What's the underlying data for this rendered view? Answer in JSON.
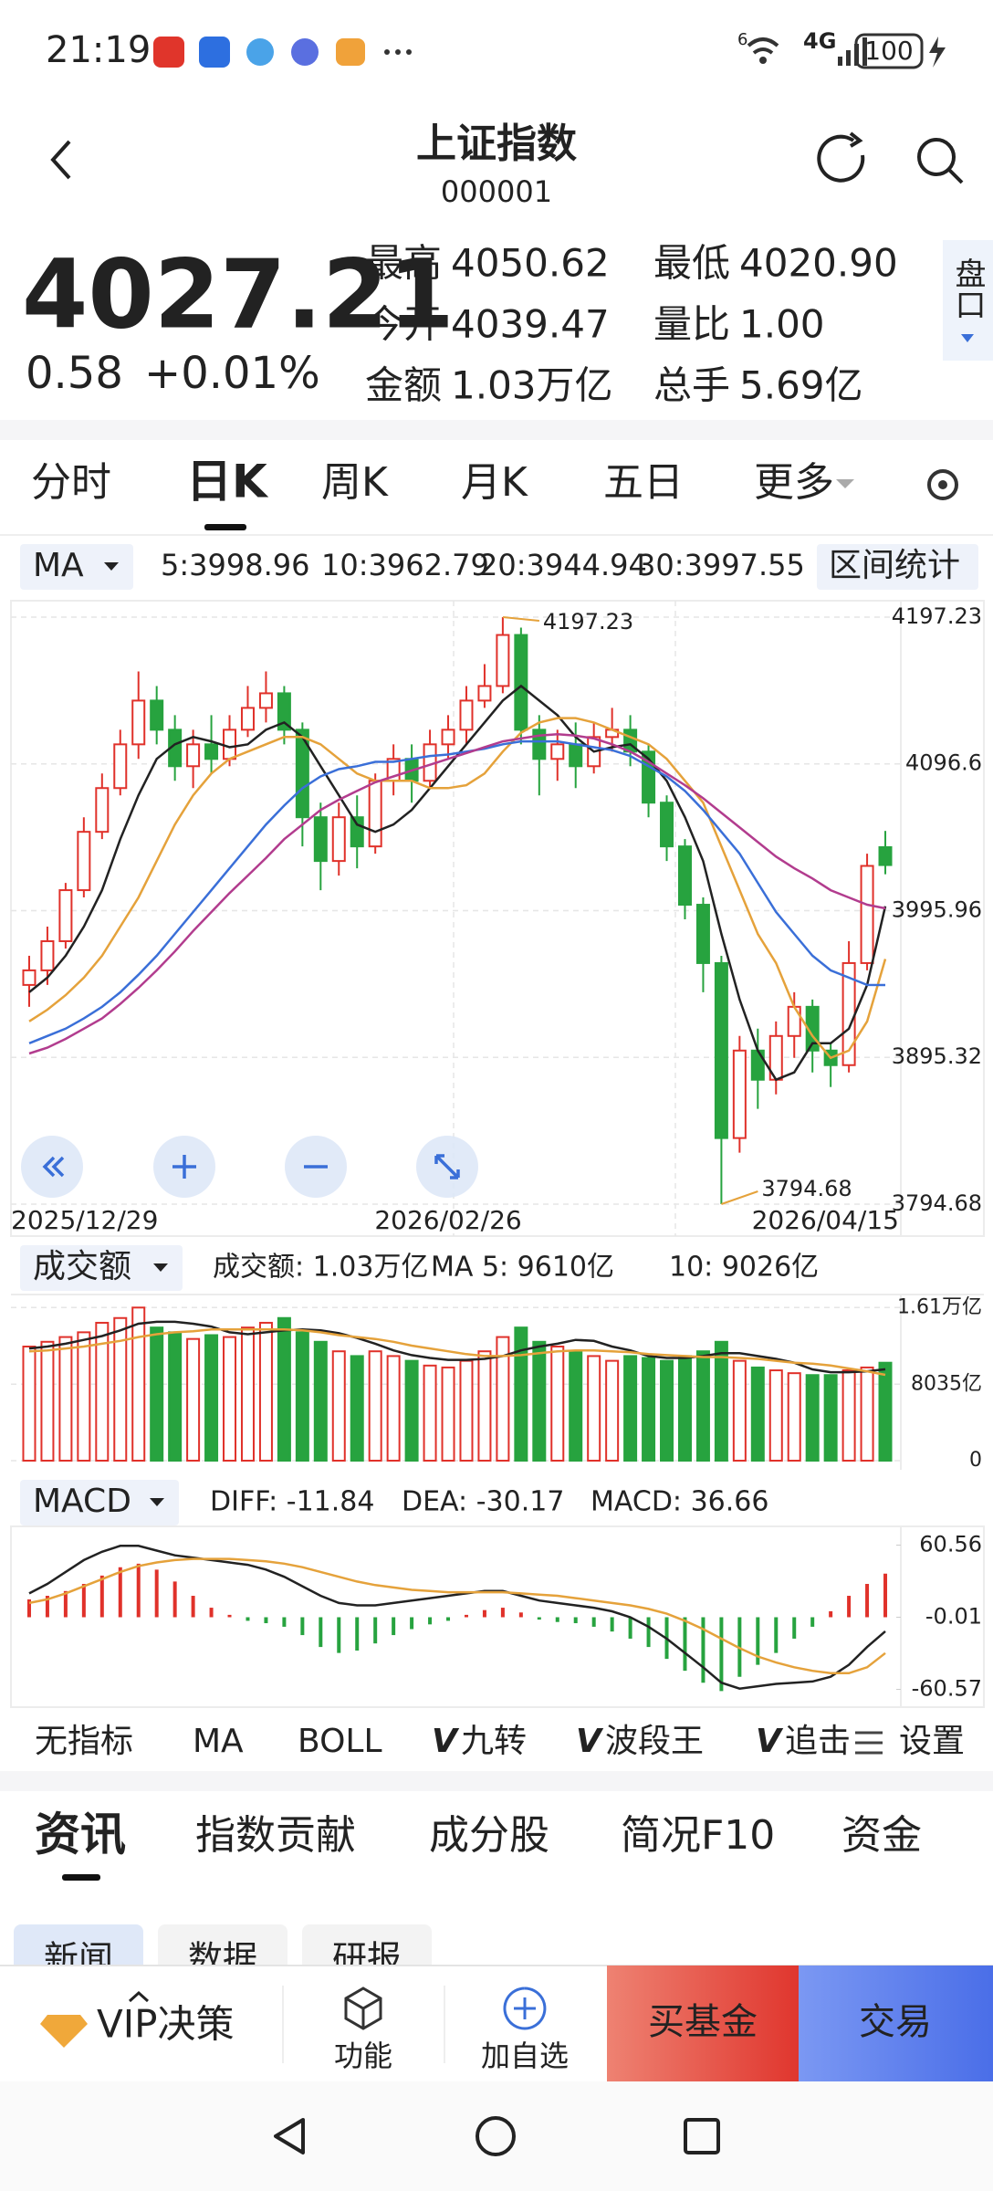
{
  "status_bar": {
    "time": "21:19",
    "wifi": "6",
    "network": "4G",
    "battery": "100"
  },
  "header": {
    "title": "上证指数",
    "code": "000001"
  },
  "quote": {
    "price": "4027.21",
    "change": "0.58",
    "change_pct": "+0.01%",
    "stats": [
      {
        "label": "最高",
        "value": "4050.62"
      },
      {
        "label": "最低",
        "value": "4020.90"
      },
      {
        "label": "今开",
        "value": "4039.47"
      },
      {
        "label": "量比",
        "value": "1.00"
      },
      {
        "label": "金额",
        "value": "1.03万亿"
      },
      {
        "label": "总手",
        "value": "5.69亿"
      }
    ],
    "panel_button": "盘口"
  },
  "period_tabs": {
    "items": [
      "分时",
      "日K",
      "周K",
      "月K",
      "五日",
      "更多"
    ],
    "selected": 1
  },
  "chart_data": [
    {
      "type": "candlestick",
      "selector": "MA",
      "button": "区间统计",
      "up_color": "#e0312a",
      "down_color": "#27a33f",
      "grid": true,
      "categories": [
        "2025/12/29",
        null,
        null,
        null,
        null,
        null,
        null,
        null,
        null,
        null,
        null,
        null,
        null,
        null,
        null,
        null,
        null,
        null,
        null,
        null,
        null,
        null,
        null,
        "2026/02/26",
        null,
        null,
        null,
        null,
        null,
        null,
        null,
        null,
        null,
        null,
        null,
        null,
        null,
        null,
        null,
        null,
        null,
        null,
        null,
        null,
        null,
        null,
        null,
        "2026/04/15"
      ],
      "open": [
        3945,
        3955,
        3975,
        4010,
        4050,
        4080,
        4110,
        4140,
        4120,
        4095,
        4110,
        4100,
        4120,
        4135,
        4145,
        4120,
        4060,
        4030,
        4060,
        4040,
        4085,
        4100,
        4085,
        4110,
        4120,
        4140,
        4150,
        4185,
        4120,
        4100,
        4110,
        4095,
        4115,
        4120,
        4105,
        4070,
        4040,
        4000,
        3960,
        3840,
        3900,
        3880,
        3910,
        3930,
        3900,
        3890,
        3960,
        4039.47
      ],
      "close": [
        3955,
        3975,
        4010,
        4050,
        4080,
        4110,
        4140,
        4120,
        4095,
        4110,
        4100,
        4120,
        4135,
        4145,
        4120,
        4060,
        4030,
        4060,
        4040,
        4085,
        4100,
        4085,
        4110,
        4120,
        4140,
        4150,
        4185,
        4120,
        4100,
        4110,
        4095,
        4115,
        4120,
        4105,
        4070,
        4040,
        4000,
        3960,
        3840,
        3900,
        3880,
        3910,
        3930,
        3900,
        3890,
        3960,
        4026.63,
        4027.21
      ],
      "high": [
        3965,
        3985,
        4015,
        4060,
        4090,
        4120,
        4160,
        4150,
        4130,
        4120,
        4130,
        4130,
        4150,
        4160,
        4150,
        4125,
        4070,
        4070,
        4075,
        4090,
        4110,
        4110,
        4120,
        4130,
        4150,
        4165,
        4197.23,
        4190,
        4130,
        4120,
        4125,
        4125,
        4135,
        4130,
        4110,
        4075,
        4045,
        4005,
        3965,
        3910,
        3915,
        3920,
        3940,
        3935,
        3905,
        3975,
        4035,
        4050.62
      ],
      "low": [
        3930,
        3945,
        3970,
        4005,
        4045,
        4075,
        4100,
        4110,
        4085,
        4080,
        4090,
        4095,
        4115,
        4125,
        4110,
        4040,
        4010,
        4020,
        4025,
        4035,
        4075,
        4070,
        4080,
        4100,
        4110,
        4135,
        4145,
        4110,
        4075,
        4085,
        4080,
        4090,
        4105,
        4095,
        4060,
        4030,
        3990,
        3940,
        3794.68,
        3830,
        3860,
        3870,
        3895,
        3885,
        3875,
        3885,
        3955,
        4020.9
      ],
      "series": [
        {
          "name": "5:3998.96",
          "color": "#222222",
          "values": [
            3940,
            3950,
            3965,
            3985,
            4010,
            4045,
            4075,
            4100,
            4110,
            4115,
            4112,
            4108,
            4110,
            4120,
            4125,
            4115,
            4095,
            4075,
            4055,
            4050,
            4055,
            4065,
            4080,
            4095,
            4110,
            4125,
            4140,
            4150,
            4140,
            4130,
            4115,
            4105,
            4108,
            4110,
            4100,
            4085,
            4060,
            4030,
            3980,
            3935,
            3900,
            3880,
            3885,
            3905,
            3905,
            3915,
            3945,
            3998.96
          ]
        },
        {
          "name": "10:3962.79",
          "color": "#e5a23b",
          "values": [
            3920,
            3928,
            3938,
            3950,
            3965,
            3985,
            4005,
            4030,
            4055,
            4075,
            4090,
            4100,
            4105,
            4110,
            4115,
            4115,
            4110,
            4100,
            4090,
            4085,
            4085,
            4085,
            4080,
            4080,
            4082,
            4090,
            4105,
            4118,
            4125,
            4128,
            4128,
            4125,
            4120,
            4115,
            4110,
            4100,
            4085,
            4070,
            4040,
            4010,
            3980,
            3960,
            3930,
            3910,
            3895,
            3900,
            3920,
            3962.79
          ]
        },
        {
          "name": "20:3944.94",
          "color": "#3a6fd8",
          "values": [
            3905,
            3910,
            3915,
            3922,
            3930,
            3940,
            3952,
            3965,
            3980,
            3995,
            4010,
            4025,
            4040,
            4055,
            4068,
            4080,
            4088,
            4093,
            4095,
            4098,
            4098,
            4100,
            4102,
            4103,
            4105,
            4107,
            4110,
            4112,
            4112,
            4112,
            4110,
            4108,
            4106,
            4102,
            4095,
            4088,
            4078,
            4065,
            4050,
            4035,
            4015,
            3995,
            3980,
            3965,
            3955,
            3950,
            3945,
            3944.94
          ]
        },
        {
          "name": "30:3997.55",
          "color": "#b23c8e",
          "values": [
            3898,
            3902,
            3908,
            3915,
            3922,
            3932,
            3943,
            3955,
            3968,
            3982,
            3995,
            4008,
            4020,
            4032,
            4045,
            4055,
            4065,
            4072,
            4078,
            4084,
            4088,
            4092,
            4096,
            4100,
            4104,
            4108,
            4112,
            4114,
            4116,
            4117,
            4116,
            4114,
            4110,
            4105,
            4098,
            4090,
            4082,
            4073,
            4063,
            4053,
            4043,
            4033,
            4025,
            4018,
            4010,
            4005,
            4000,
            3997.55
          ]
        }
      ],
      "ylim": [
        3794.68,
        4197.23
      ],
      "yticks": [
        4197.23,
        4096.6,
        3995.96,
        3895.32,
        3794.68
      ]
    },
    {
      "type": "bar",
      "selector": "成交额",
      "headline": "成交额: 1.03万亿",
      "values": [
        12000,
        12500,
        13000,
        13500,
        14500,
        15000,
        16100,
        14000,
        13500,
        12800,
        13200,
        13000,
        14000,
        14500,
        15000,
        13500,
        12500,
        11500,
        11000,
        11500,
        11000,
        10500,
        10000,
        9800,
        10500,
        11500,
        13000,
        14000,
        12500,
        12000,
        11500,
        11000,
        10500,
        11000,
        10800,
        10500,
        11000,
        11500,
        12500,
        10500,
        9800,
        9500,
        9200,
        9000,
        9000,
        9500,
        9800,
        10300
      ],
      "series": [
        {
          "name": "MA 5: 9610亿",
          "color": "#222222",
          "values": [
            11800,
            12000,
            12300,
            12700,
            13100,
            13700,
            14400,
            14600,
            14600,
            14400,
            14100,
            13500,
            13300,
            13500,
            13700,
            13800,
            13700,
            13400,
            12900,
            12300,
            11600,
            11100,
            10800,
            10600,
            10600,
            10700,
            11000,
            11600,
            12000,
            12300,
            12700,
            12600,
            12000,
            11600,
            11000,
            10800,
            10800,
            11000,
            11300,
            11300,
            11000,
            10700,
            10300,
            9600,
            9300,
            9300,
            9400,
            9610
          ]
        },
        {
          "name": "10: 9026亿",
          "color": "#e5a23b",
          "values": [
            11500,
            11600,
            11800,
            12000,
            12300,
            12600,
            13000,
            13300,
            13500,
            13600,
            13800,
            13800,
            13800,
            13800,
            13800,
            13700,
            13500,
            13200,
            13000,
            12800,
            12500,
            12100,
            11800,
            11500,
            11200,
            11000,
            11000,
            11100,
            11300,
            11500,
            11600,
            11600,
            11500,
            11400,
            11200,
            11100,
            11000,
            10900,
            10900,
            10800,
            10700,
            10500,
            10300,
            10200,
            10000,
            9700,
            9400,
            9026
          ]
        }
      ],
      "ylim": [
        0,
        16800
      ],
      "yticks": [
        {
          "value": 16100,
          "label": "1.61万亿"
        },
        {
          "value": 8035,
          "label": "8035亿"
        },
        0
      ]
    },
    {
      "type": "macd",
      "selector": "MACD",
      "value_legend": "MACD: 36.66",
      "value_color": "#3a6fd8",
      "values": [
        15,
        18,
        22,
        28,
        35,
        42,
        45,
        40,
        30,
        18,
        8,
        2,
        -3,
        -5,
        -8,
        -15,
        -25,
        -30,
        -28,
        -22,
        -15,
        -10,
        -6,
        -3,
        2,
        6,
        8,
        4,
        -2,
        -4,
        -5,
        -8,
        -12,
        -18,
        -25,
        -35,
        -45,
        -55,
        -62,
        -50,
        -40,
        -30,
        -18,
        -8,
        5,
        18,
        28,
        36.66
      ],
      "series": [
        {
          "name": "DIFF: -11.84",
          "color": "#222222",
          "values": [
            20,
            28,
            38,
            48,
            55,
            60,
            60,
            56,
            52,
            50,
            48,
            46,
            44,
            40,
            34,
            26,
            18,
            12,
            10,
            10,
            12,
            14,
            16,
            18,
            20,
            22,
            22,
            18,
            14,
            12,
            10,
            8,
            5,
            0,
            -8,
            -18,
            -30,
            -42,
            -55,
            -60,
            -58,
            -56,
            -55,
            -54,
            -50,
            -40,
            -25,
            -11.84
          ]
        },
        {
          "name": "DEA: -30.17",
          "color": "#e5a23b",
          "values": [
            12,
            15,
            20,
            26,
            32,
            38,
            43,
            46,
            48,
            49,
            49,
            49,
            48,
            47,
            45,
            42,
            38,
            34,
            30,
            27,
            25,
            23,
            22,
            21,
            21,
            21,
            21,
            20,
            19,
            18,
            16,
            14,
            12,
            10,
            7,
            3,
            -3,
            -10,
            -18,
            -26,
            -33,
            -38,
            -42,
            -45,
            -47,
            -47,
            -42,
            -30.17
          ]
        }
      ],
      "ylim": [
        -74,
        74
      ],
      "yticks": [
        60.56,
        -0.01,
        -60.57
      ]
    }
  ],
  "indicator_tabs": [
    {
      "label": "无指标"
    },
    {
      "label": "MA"
    },
    {
      "label": "BOLL"
    },
    {
      "badge": "V",
      "label": "九转"
    },
    {
      "badge": "V",
      "label": "波段王"
    },
    {
      "badge": "V",
      "label": "追击"
    },
    {
      "label": "设置"
    }
  ],
  "indicator_selected": 1,
  "info_tabs": {
    "items": [
      "资讯",
      "指数贡献",
      "成分股",
      "简况F10",
      "资金"
    ],
    "selected": 0
  },
  "sub_tabs": [
    "新闻",
    "数据",
    "研报"
  ],
  "bottom_bar": {
    "vip": "VIP决策",
    "function": "功能",
    "watchlist": "加自选",
    "buy_fund": "买基金",
    "trade": "交易"
  }
}
